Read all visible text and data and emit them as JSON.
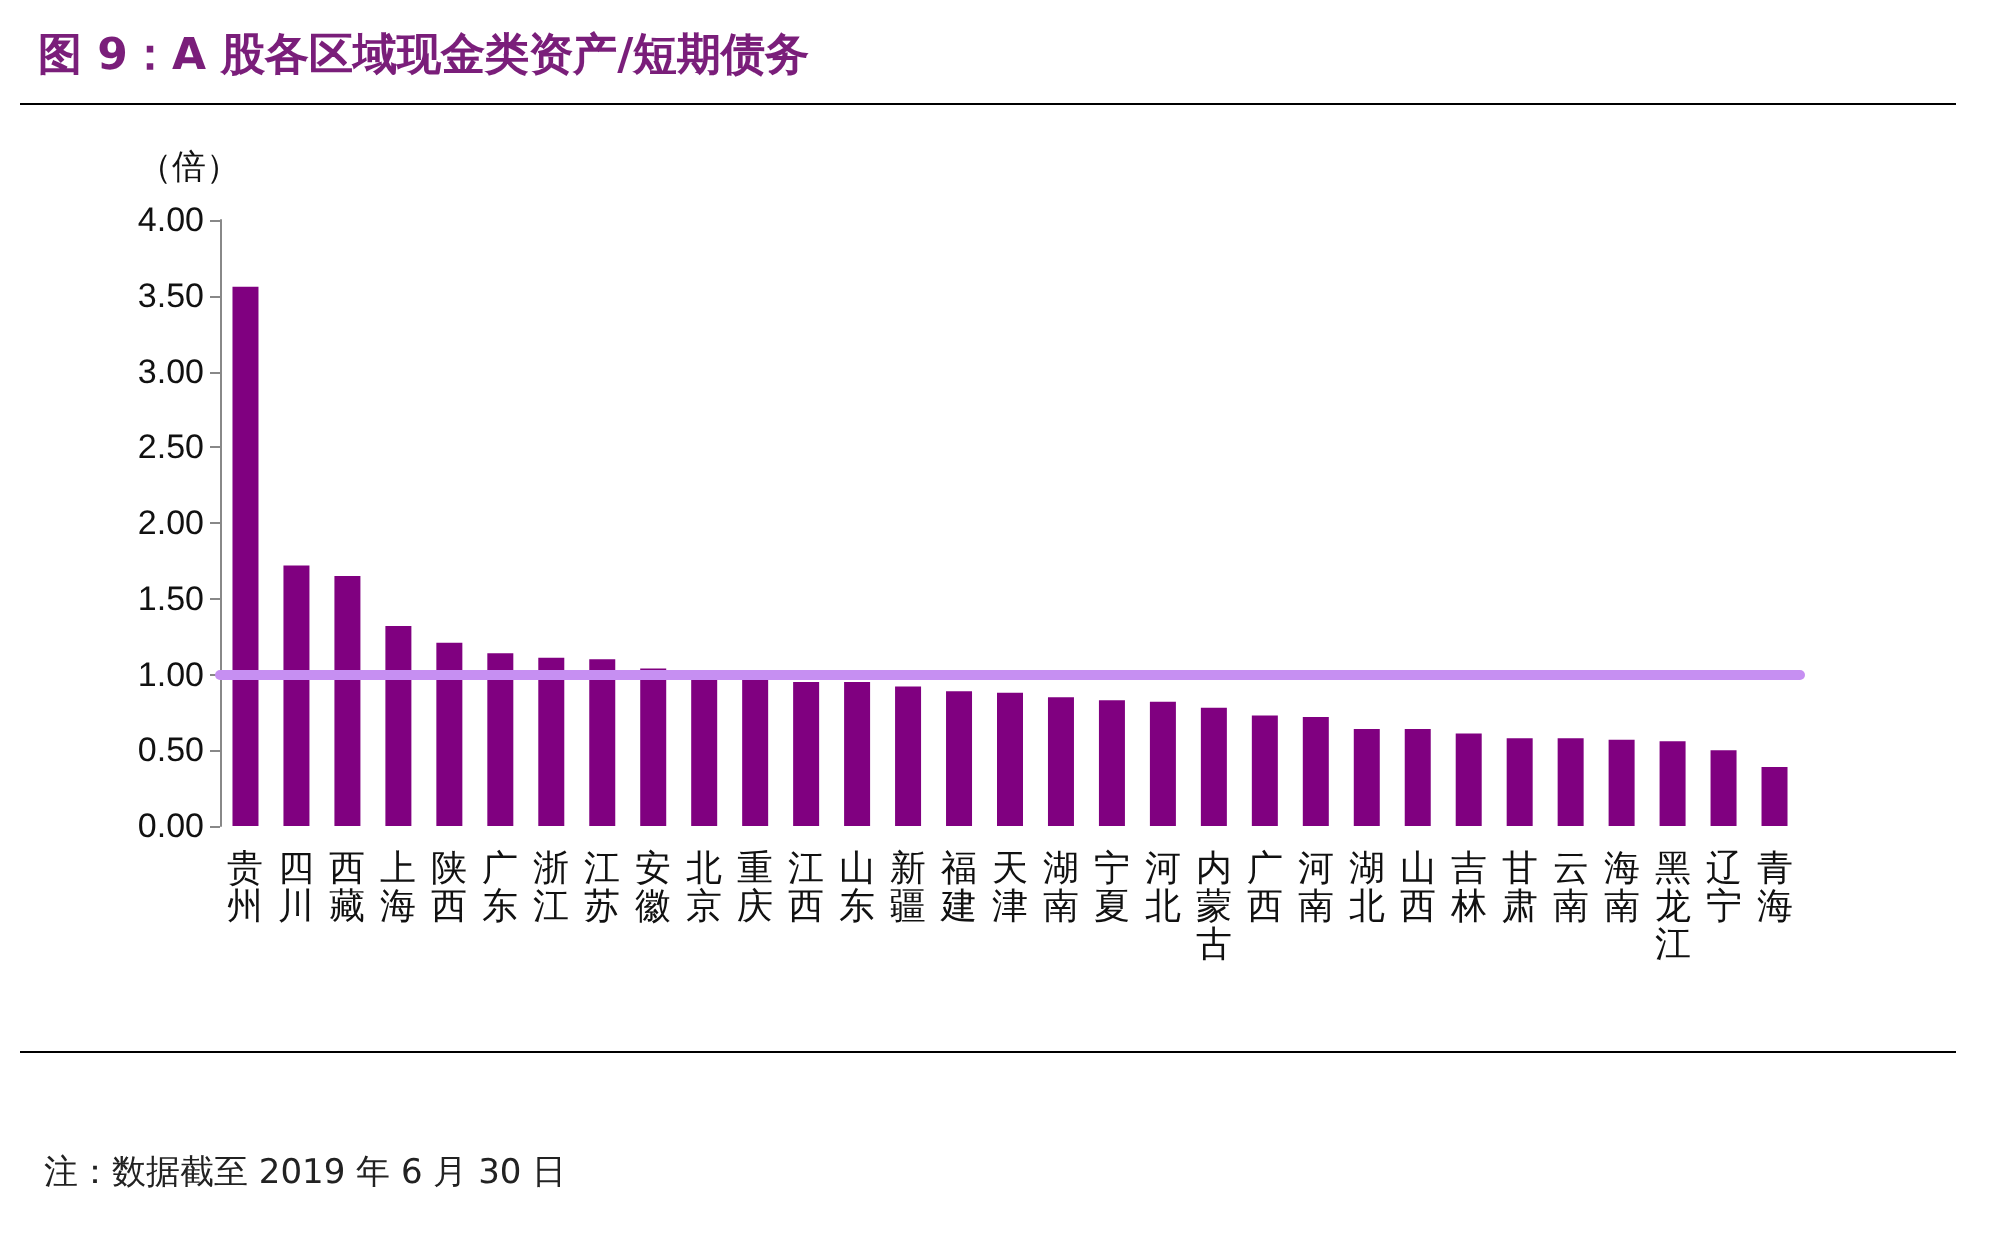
{
  "chart_data": {
    "type": "bar",
    "title": "图 9：A 股各区域现金类资产/短期债务",
    "ylabel": "（倍）",
    "categories": [
      "贵州",
      "四川",
      "西藏",
      "上海",
      "陕西",
      "广东",
      "浙江",
      "江苏",
      "安徽",
      "北京",
      "重庆",
      "江西",
      "山东",
      "新疆",
      "福建",
      "天津",
      "湖南",
      "宁夏",
      "河北",
      "内蒙古",
      "广西",
      "河南",
      "湖北",
      "山西",
      "吉林",
      "甘肃",
      "云南",
      "海南",
      "黑龙江",
      "辽宁",
      "青海"
    ],
    "values": [
      3.56,
      1.72,
      1.65,
      1.32,
      1.21,
      1.14,
      1.11,
      1.1,
      1.04,
      0.98,
      0.97,
      0.95,
      0.95,
      0.92,
      0.89,
      0.88,
      0.85,
      0.83,
      0.82,
      0.78,
      0.73,
      0.72,
      0.64,
      0.64,
      0.61,
      0.58,
      0.58,
      0.57,
      0.56,
      0.5,
      0.39
    ],
    "color": "#800080",
    "ylim": [
      0,
      4
    ],
    "yticks": [
      {
        "value": 0,
        "label": "0.00"
      },
      {
        "value": 0.5,
        "label": "0.50"
      },
      {
        "value": 1,
        "label": "1.00"
      },
      {
        "value": 1.5,
        "label": "1.50"
      },
      {
        "value": 2,
        "label": "2.00"
      },
      {
        "value": 2.5,
        "label": "2.50"
      },
      {
        "value": 3,
        "label": "3.00"
      },
      {
        "value": 3.5,
        "label": "3.50"
      },
      {
        "value": 4,
        "label": "4.00"
      }
    ],
    "ref_lines": [
      {
        "axis": "y",
        "value": 1,
        "label": null,
        "color": "#c68ff2"
      }
    ],
    "grid": false,
    "annotations": [
      "注：数据截至 2019 年 6 月 30 日"
    ]
  }
}
